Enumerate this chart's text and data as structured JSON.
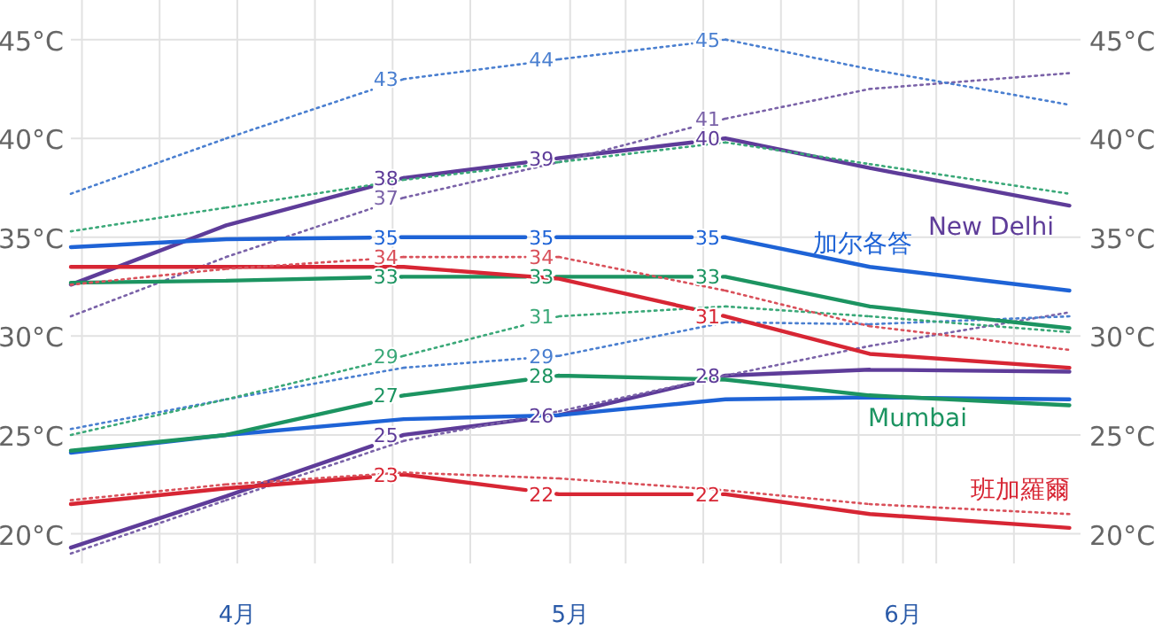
{
  "chart_data": {
    "type": "line",
    "marker": "none",
    "grid": true,
    "legend": false,
    "x": [
      "--04-01",
      "--04-15",
      "--05-01",
      "--05-15",
      "--05-30",
      "--06-12",
      "--06-30"
    ],
    "xlim": [
      "--04-01",
      "--07-01"
    ],
    "xticks": [
      {
        "value": "--04-02",
        "label": null
      },
      {
        "value": "--04-09",
        "label": null
      },
      {
        "value": "--04-16",
        "label": "4月"
      },
      {
        "value": "--04-23",
        "label": null
      },
      {
        "value": "--04-30",
        "label": null
      },
      {
        "value": "--05-07",
        "label": null
      },
      {
        "value": "--05-16",
        "label": "5月"
      },
      {
        "value": "--05-21",
        "label": null
      },
      {
        "value": "--05-28",
        "label": null
      },
      {
        "value": "--06-04",
        "label": null
      },
      {
        "value": "--06-11",
        "label": null
      },
      {
        "value": "--06-15",
        "label": "6月"
      },
      {
        "value": "--06-18",
        "label": null
      },
      {
        "value": "--06-25",
        "label": null
      }
    ],
    "ylim": [
      18.5,
      47
    ],
    "yticks": [
      {
        "value": 20,
        "label": "20°C"
      },
      {
        "value": 25,
        "label": "25°C"
      },
      {
        "value": 30,
        "label": "30°C"
      },
      {
        "value": 35,
        "label": "35°C"
      },
      {
        "value": 40,
        "label": "40°C"
      },
      {
        "value": 45,
        "label": "45°C"
      }
    ],
    "y2lim": [
      18.5,
      47
    ],
    "y2ticks": [
      {
        "value": 20,
        "label": "20°C"
      },
      {
        "value": 25,
        "label": "25°C"
      },
      {
        "value": 30,
        "label": "30°C"
      },
      {
        "value": 35,
        "label": "35°C"
      },
      {
        "value": 40,
        "label": "40°C"
      },
      {
        "value": 45,
        "label": "45°C"
      }
    ],
    "series": [
      {
        "name": "New Delhi",
        "color": "#5e3c99",
        "line_style": "solid",
        "values": [
          32.6,
          35.6,
          38,
          39,
          40,
          38.5,
          36.6
        ],
        "value_labels": [
          null,
          null,
          "38",
          "39",
          "40",
          null,
          null
        ]
      },
      {
        "color": "#7a62a8",
        "line_style": "dotted",
        "values": [
          31,
          34,
          37,
          38.8,
          41,
          42.5,
          43.3
        ],
        "value_labels": [
          null,
          null,
          "37",
          null,
          "41",
          null,
          null
        ]
      },
      {
        "color": "#5e3c99",
        "line_style": "solid",
        "values": [
          19.3,
          21.9,
          25,
          26,
          28,
          28.3,
          28.2
        ],
        "value_labels": [
          null,
          null,
          "25",
          "26",
          "28",
          null,
          null
        ]
      },
      {
        "color": "#7a62a8",
        "line_style": "dotted",
        "values": [
          19,
          21.7,
          24.7,
          26.2,
          28,
          29.5,
          31.2
        ]
      },
      {
        "name": "加尔各答",
        "color": "#1e63d6",
        "line_style": "solid",
        "values": [
          34.5,
          34.9,
          35,
          35,
          35,
          33.5,
          32.3
        ],
        "value_labels": [
          null,
          null,
          "35",
          "35",
          "35",
          null,
          null
        ]
      },
      {
        "color": "#4a7fd0",
        "line_style": "dotted",
        "values": [
          37.2,
          40,
          43,
          44,
          45,
          43.5,
          41.7
        ],
        "value_labels": [
          null,
          null,
          "43",
          "44",
          "45",
          null,
          null
        ]
      },
      {
        "color": "#1e63d6",
        "line_style": "solid",
        "values": [
          24.1,
          25,
          25.8,
          26,
          26.8,
          26.9,
          26.8
        ]
      },
      {
        "color": "#4a7fd0",
        "line_style": "dotted",
        "values": [
          25.3,
          26.8,
          28.4,
          29,
          30.7,
          30.6,
          31
        ],
        "value_labels": [
          null,
          null,
          null,
          "29",
          null,
          null,
          null
        ]
      },
      {
        "color": "#1c9461",
        "line_style": "solid",
        "values": [
          32.7,
          32.8,
          33,
          33,
          33,
          31.5,
          30.4
        ],
        "value_labels": [
          null,
          null,
          "33",
          "33",
          "33",
          null,
          null
        ]
      },
      {
        "color": "#3aa878",
        "line_style": "dotted",
        "values": [
          35.3,
          36.5,
          37.9,
          38.8,
          39.8,
          38.7,
          37.2
        ]
      },
      {
        "name": "Mumbai",
        "color": "#1c9461",
        "line_style": "solid",
        "values": [
          24.2,
          25,
          27,
          28,
          27.8,
          27,
          26.5
        ],
        "value_labels": [
          null,
          null,
          "27",
          "28",
          null,
          null,
          null
        ]
      },
      {
        "color": "#3aa878",
        "line_style": "dotted",
        "values": [
          25,
          26.8,
          29,
          31,
          31.5,
          31,
          30.2
        ],
        "value_labels": [
          null,
          null,
          "29",
          "31",
          null,
          null,
          null
        ]
      },
      {
        "color": "#d72634",
        "line_style": "solid",
        "values": [
          33.5,
          33.5,
          33.5,
          32.9,
          31,
          29.1,
          28.4
        ],
        "value_labels": [
          null,
          null,
          null,
          null,
          "31",
          null,
          null
        ]
      },
      {
        "color": "#d9505a",
        "line_style": "dotted",
        "values": [
          32.6,
          33.4,
          34,
          34,
          32.3,
          30.5,
          29.3
        ],
        "value_labels": [
          null,
          null,
          "34",
          "34",
          null,
          null,
          null
        ]
      },
      {
        "name": "班加羅爾",
        "color": "#d72634",
        "line_style": "solid",
        "values": [
          21.5,
          22.3,
          23,
          22,
          22,
          21,
          20.3
        ],
        "value_labels": [
          null,
          null,
          "23",
          "22",
          "22",
          null,
          null
        ]
      },
      {
        "color": "#d9505a",
        "line_style": "dotted",
        "values": [
          21.7,
          22.5,
          23.1,
          22.8,
          22.2,
          21.5,
          21
        ]
      }
    ]
  }
}
